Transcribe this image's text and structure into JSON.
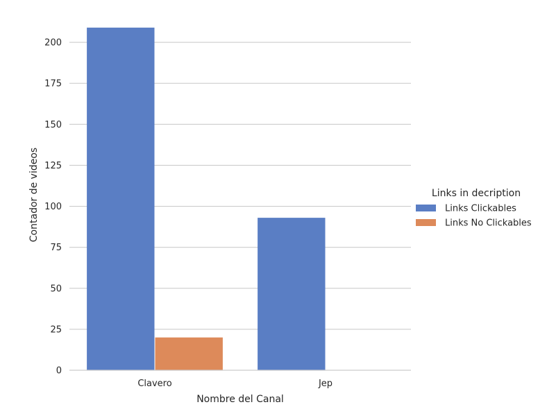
{
  "chart_data": {
    "type": "bar",
    "title": "",
    "xlabel": "Nombre del Canal",
    "ylabel": "Contador de videos",
    "categories": [
      "Clavero",
      "Jep"
    ],
    "series": [
      {
        "name": "Links Clickables",
        "values": [
          209,
          93
        ],
        "color": "#5a7ec4"
      },
      {
        "name": "Links No Clickables",
        "values": [
          20,
          0
        ],
        "color": "#dd8a5a"
      }
    ],
    "ylim": [
      0,
      214
    ],
    "yticks": [
      0,
      25,
      50,
      75,
      100,
      125,
      150,
      175,
      200
    ],
    "grid": "horizontal",
    "legend": {
      "title": "Links in decription",
      "placement": "right"
    }
  }
}
